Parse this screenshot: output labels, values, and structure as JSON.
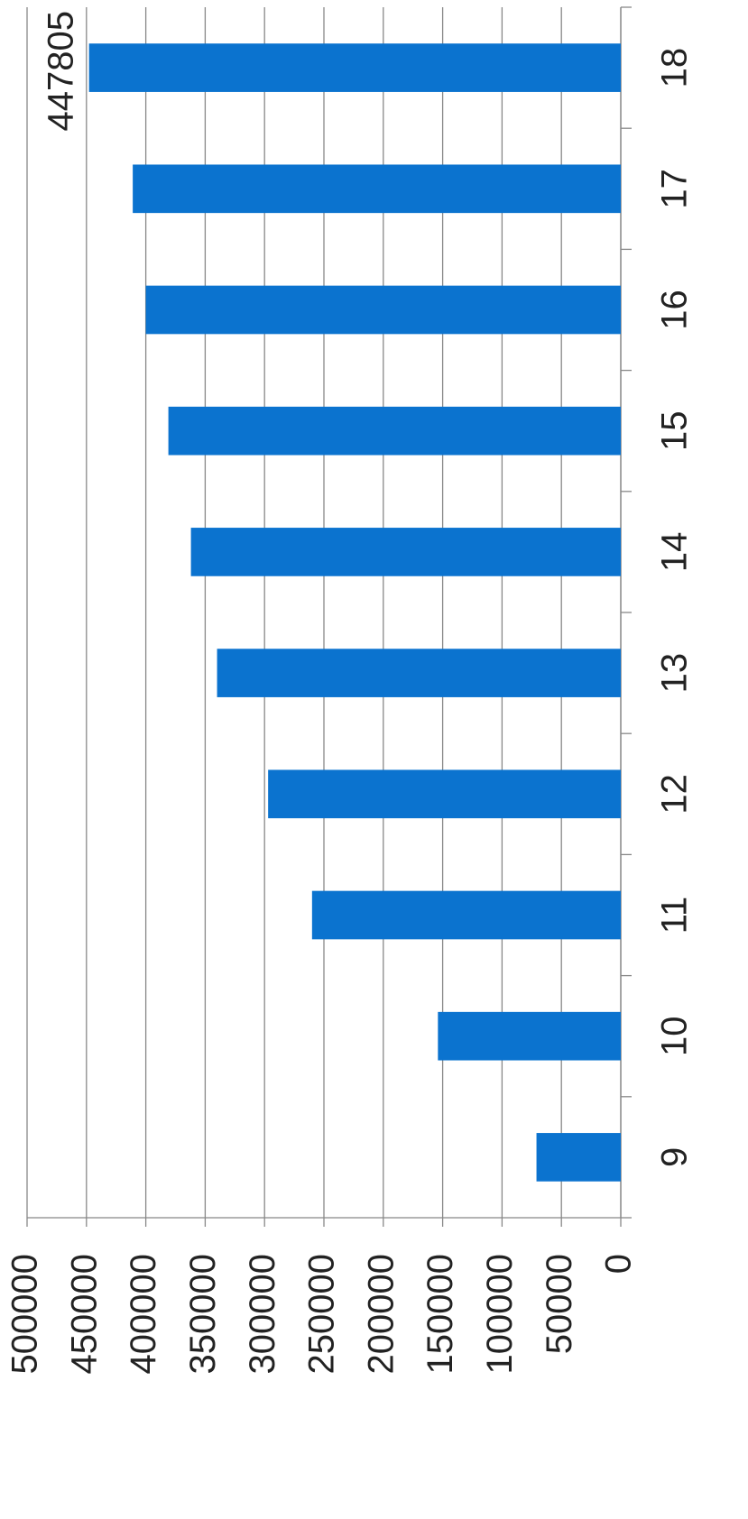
{
  "chart_data": {
    "type": "bar",
    "categories": [
      "9",
      "10",
      "11",
      "12",
      "13",
      "14",
      "15",
      "16",
      "17",
      "18"
    ],
    "values": [
      71000,
      154000,
      260000,
      297000,
      340000,
      362000,
      381000,
      400000,
      411000,
      447805
    ],
    "value_labels": [
      null,
      null,
      null,
      null,
      null,
      null,
      null,
      null,
      null,
      "447805"
    ],
    "color": "#0b73cf",
    "ylim": [
      0,
      500000
    ],
    "yticks": [
      0,
      50000,
      100000,
      150000,
      200000,
      250000,
      300000,
      350000,
      400000,
      450000,
      500000
    ],
    "grid": true,
    "rotation": -90
  }
}
